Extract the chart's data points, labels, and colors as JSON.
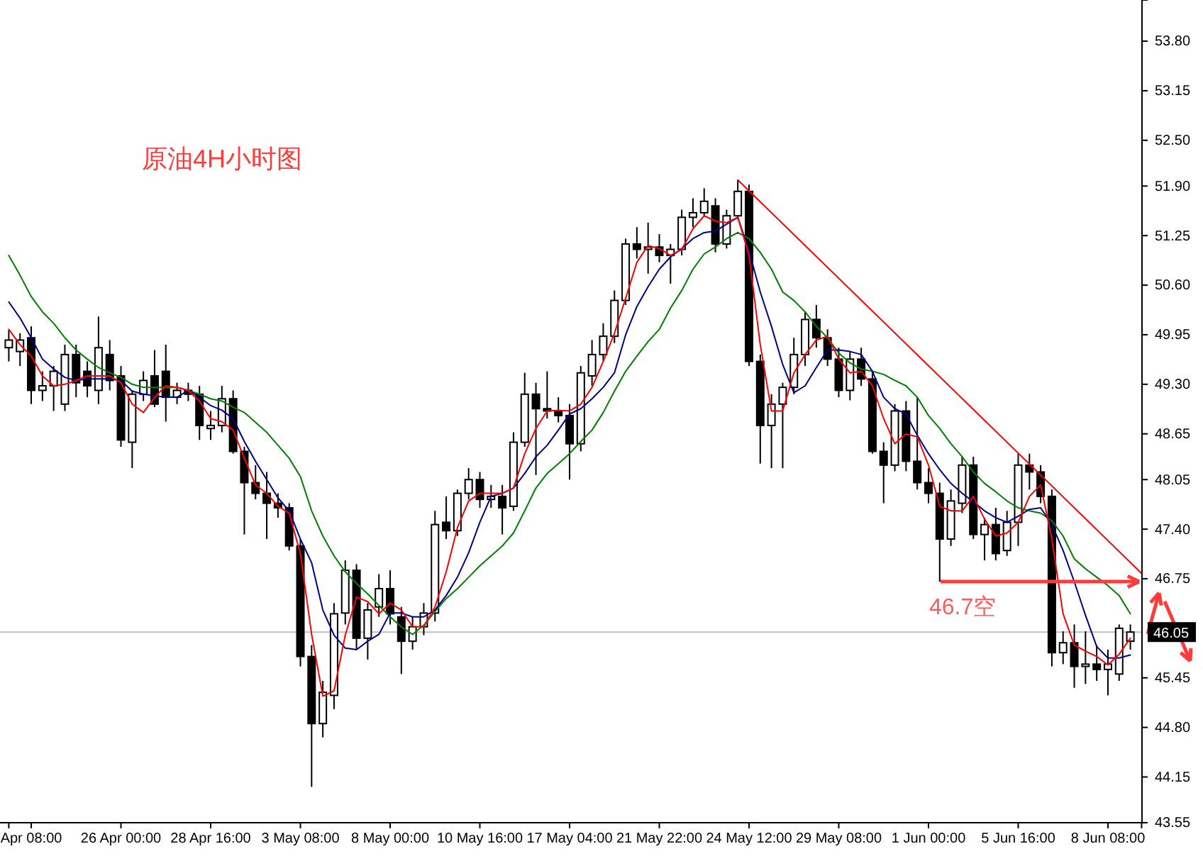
{
  "chart_data": {
    "type": "candlestick",
    "title": "原油4H小时图",
    "categories": [
      null,
      null,
      "Apr 08:00",
      null,
      null,
      null,
      null,
      null,
      null,
      null,
      "26 Apr 00:00",
      null,
      null,
      null,
      null,
      null,
      null,
      null,
      "28 Apr 16:00",
      null,
      null,
      null,
      null,
      null,
      null,
      null,
      "3 May 08:00",
      null,
      null,
      null,
      null,
      null,
      null,
      null,
      "8 May 00:00",
      null,
      null,
      null,
      null,
      null,
      null,
      null,
      "10 May 16:00",
      null,
      null,
      null,
      null,
      null,
      null,
      null,
      "17 May 04:00",
      null,
      null,
      null,
      null,
      null,
      null,
      null,
      "21 May 22:00",
      null,
      null,
      null,
      null,
      null,
      null,
      null,
      "24 May 12:00",
      null,
      null,
      null,
      null,
      null,
      null,
      null,
      "29 May 08:00",
      null,
      null,
      null,
      null,
      null,
      null,
      null,
      "1 Jun 00:00",
      null,
      null,
      null,
      null,
      null,
      null,
      null,
      "5 Jun 16:00",
      null,
      null,
      null,
      null,
      null,
      null,
      null,
      "8 Jun 08:00",
      null,
      null,
      null
    ],
    "ohlc": [
      [
        49.78,
        50.01,
        49.6,
        49.88
      ],
      [
        49.73,
        49.97,
        49.54,
        49.88
      ],
      [
        49.91,
        50.06,
        49.04,
        49.22
      ],
      [
        49.22,
        49.47,
        49.08,
        49.28
      ],
      [
        49.28,
        49.54,
        48.95,
        49.47
      ],
      [
        49.04,
        49.82,
        48.95,
        49.69
      ],
      [
        49.69,
        49.82,
        49.13,
        49.32
      ],
      [
        49.47,
        49.6,
        49.13,
        49.28
      ],
      [
        49.22,
        50.19,
        49.04,
        49.78
      ],
      [
        49.69,
        49.88,
        49.22,
        49.35
      ],
      [
        49.41,
        49.54,
        48.48,
        48.57
      ],
      [
        48.54,
        49.22,
        48.2,
        49.17
      ],
      [
        49.17,
        49.47,
        49.08,
        49.35
      ],
      [
        49.41,
        49.75,
        49.0,
        49.04
      ],
      [
        49.47,
        49.82,
        48.81,
        49.13
      ],
      [
        49.13,
        49.32,
        49.04,
        49.22
      ],
      [
        49.22,
        49.32,
        49.08,
        49.17
      ],
      [
        49.17,
        49.28,
        48.57,
        48.76
      ],
      [
        48.72,
        48.95,
        48.57,
        48.76
      ],
      [
        48.76,
        49.28,
        48.67,
        49.11
      ],
      [
        49.11,
        49.22,
        48.39,
        48.42
      ],
      [
        48.42,
        48.48,
        47.33,
        48.01
      ],
      [
        48.01,
        48.24,
        47.79,
        47.87
      ],
      [
        47.87,
        48.15,
        47.27,
        47.74
      ],
      [
        47.74,
        47.87,
        47.55,
        47.68
      ],
      [
        47.68,
        47.74,
        47.12,
        47.18
      ],
      [
        47.18,
        47.27,
        45.6,
        45.73
      ],
      [
        45.73,
        45.88,
        44.02,
        44.85
      ],
      [
        44.85,
        45.41,
        44.67,
        45.26
      ],
      [
        45.22,
        46.43,
        45.04,
        46.29
      ],
      [
        46.3,
        46.99,
        46.15,
        46.86
      ],
      [
        46.86,
        46.94,
        45.82,
        45.97
      ],
      [
        45.97,
        46.43,
        45.69,
        46.34
      ],
      [
        46.38,
        46.81,
        46.25,
        46.62
      ],
      [
        46.62,
        46.86,
        46.15,
        46.29
      ],
      [
        46.25,
        46.38,
        45.5,
        45.93
      ],
      [
        45.93,
        46.25,
        45.82,
        46.12
      ],
      [
        46.12,
        46.43,
        46.01,
        46.3
      ],
      [
        46.3,
        47.64,
        46.19,
        47.46
      ],
      [
        47.49,
        47.83,
        47.27,
        47.38
      ],
      [
        47.38,
        47.92,
        47.31,
        47.87
      ],
      [
        47.87,
        48.2,
        47.79,
        48.05
      ],
      [
        48.05,
        48.15,
        47.68,
        47.79
      ],
      [
        47.79,
        47.98,
        47.68,
        47.83
      ],
      [
        47.83,
        47.98,
        47.33,
        47.68
      ],
      [
        47.7,
        48.67,
        47.64,
        48.54
      ],
      [
        48.54,
        49.45,
        48.48,
        49.17
      ],
      [
        49.17,
        49.32,
        48.11,
        48.98
      ],
      [
        48.98,
        49.47,
        48.85,
        48.95
      ],
      [
        48.95,
        49.13,
        48.8,
        48.89
      ],
      [
        48.89,
        49.04,
        48.05,
        48.52
      ],
      [
        48.52,
        49.54,
        48.42,
        49.45
      ],
      [
        49.41,
        49.88,
        49.28,
        49.69
      ],
      [
        49.69,
        50.1,
        49.6,
        49.93
      ],
      [
        49.93,
        50.53,
        49.84,
        50.4
      ],
      [
        50.4,
        51.21,
        50.34,
        51.14
      ],
      [
        51.14,
        51.36,
        50.95,
        51.07
      ],
      [
        51.07,
        51.42,
        50.75,
        51.1
      ],
      [
        51.1,
        51.27,
        50.9,
        50.99
      ],
      [
        50.99,
        51.14,
        50.62,
        51.07
      ],
      [
        51.07,
        51.59,
        50.99,
        51.49
      ],
      [
        51.49,
        51.74,
        51.36,
        51.55
      ],
      [
        51.55,
        51.87,
        51.51,
        51.7
      ],
      [
        51.64,
        51.74,
        51.03,
        51.14
      ],
      [
        51.14,
        51.59,
        51.08,
        51.51
      ],
      [
        51.51,
        51.98,
        51.46,
        51.83
      ],
      [
        51.83,
        51.92,
        49.54,
        49.6
      ],
      [
        49.6,
        49.69,
        48.26,
        48.76
      ],
      [
        48.76,
        49.17,
        48.2,
        49.04
      ],
      [
        49.04,
        49.32,
        48.2,
        49.26
      ],
      [
        49.26,
        49.91,
        49.17,
        49.69
      ],
      [
        49.69,
        50.25,
        49.54,
        50.15
      ],
      [
        50.15,
        50.34,
        49.78,
        49.91
      ],
      [
        49.91,
        50.02,
        49.54,
        49.63
      ],
      [
        49.63,
        49.78,
        49.13,
        49.22
      ],
      [
        49.22,
        49.73,
        49.09,
        49.63
      ],
      [
        49.63,
        49.78,
        49.28,
        49.37
      ],
      [
        49.37,
        49.47,
        48.39,
        48.42
      ],
      [
        48.42,
        48.54,
        47.74,
        48.24
      ],
      [
        48.24,
        49.04,
        48.16,
        48.95
      ],
      [
        48.95,
        49.08,
        48.16,
        48.29
      ],
      [
        48.29,
        49.13,
        47.92,
        48.01
      ],
      [
        48.01,
        48.2,
        47.74,
        47.87
      ],
      [
        47.87,
        48.01,
        46.71,
        47.27
      ],
      [
        47.27,
        47.92,
        47.18,
        47.77
      ],
      [
        47.74,
        48.35,
        47.61,
        48.24
      ],
      [
        48.24,
        48.35,
        47.27,
        47.33
      ],
      [
        47.33,
        47.55,
        46.99,
        47.46
      ],
      [
        47.46,
        47.68,
        46.99,
        47.08
      ],
      [
        47.12,
        47.64,
        47.05,
        47.49
      ],
      [
        47.49,
        48.39,
        47.18,
        48.24
      ],
      [
        48.24,
        48.39,
        47.92,
        48.15
      ],
      [
        48.15,
        48.24,
        47.74,
        47.83
      ],
      [
        47.83,
        47.92,
        45.6,
        45.78
      ],
      [
        45.78,
        46.06,
        45.63,
        45.91
      ],
      [
        45.91,
        46.15,
        45.32,
        45.6
      ],
      [
        45.6,
        46.06,
        45.37,
        45.63
      ],
      [
        45.63,
        45.88,
        45.41,
        45.56
      ],
      [
        45.56,
        45.82,
        45.22,
        45.63
      ],
      [
        45.5,
        46.15,
        45.41,
        46.1
      ],
      [
        45.93,
        46.15,
        45.82,
        46.05
      ],
      null
    ],
    "series": [
      {
        "type": "line",
        "color": "#008000",
        "values": [
          50.99,
          50.73,
          50.45,
          50.25,
          50.1,
          49.91,
          49.75,
          49.63,
          49.52,
          49.45,
          49.39,
          49.3,
          49.26,
          49.26,
          49.26,
          49.26,
          49.22,
          49.17,
          49.11,
          49.08,
          49.0,
          48.93,
          48.8,
          48.67,
          48.5,
          48.33,
          48.09,
          47.64,
          47.31,
          47.05,
          46.84,
          46.69,
          46.55,
          46.4,
          46.25,
          46.12,
          46.02,
          46.14,
          46.32,
          46.49,
          46.62,
          46.77,
          46.92,
          47.05,
          47.18,
          47.35,
          47.64,
          47.94,
          48.13,
          48.26,
          48.39,
          48.55,
          48.7,
          48.93,
          49.21,
          49.47,
          49.67,
          49.86,
          50.02,
          50.3,
          50.53,
          50.81,
          51.01,
          51.1,
          51.21,
          51.29,
          51.21,
          51.03,
          50.81,
          50.51,
          50.4,
          50.25,
          50.06,
          49.91,
          49.71,
          49.58,
          49.5,
          49.47,
          49.43,
          49.35,
          49.28,
          49.13,
          48.89,
          48.72,
          48.52,
          48.35,
          48.15,
          48.0,
          47.89,
          47.77,
          47.68,
          47.64,
          47.61,
          47.51,
          47.31,
          47.01,
          46.88,
          46.77,
          46.66,
          46.53,
          46.29,
          null
        ]
      },
      {
        "type": "line",
        "color": "#00008b",
        "values": [
          50.38,
          50.17,
          49.91,
          49.63,
          49.5,
          49.39,
          49.35,
          49.37,
          49.37,
          49.37,
          49.35,
          49.21,
          49.17,
          49.15,
          49.13,
          49.13,
          49.22,
          49.13,
          49.02,
          48.96,
          48.85,
          48.55,
          48.29,
          48.05,
          47.81,
          47.64,
          47.27,
          46.96,
          46.34,
          46.01,
          45.84,
          45.82,
          45.93,
          46.02,
          46.3,
          46.3,
          46.25,
          46.25,
          46.34,
          46.53,
          46.77,
          47.09,
          47.49,
          47.83,
          47.87,
          47.94,
          48.13,
          48.35,
          48.5,
          48.7,
          48.91,
          48.98,
          49.11,
          49.26,
          49.45,
          49.95,
          50.32,
          50.58,
          50.81,
          50.97,
          51.08,
          51.21,
          51.29,
          51.31,
          51.4,
          51.49,
          51.05,
          50.51,
          50.06,
          49.56,
          49.19,
          49.28,
          49.52,
          49.75,
          49.75,
          49.73,
          49.69,
          49.47,
          49.13,
          48.98,
          48.91,
          48.63,
          48.39,
          48.18,
          48.0,
          47.87,
          47.76,
          47.64,
          47.55,
          47.49,
          47.57,
          47.66,
          47.68,
          47.46,
          47.12,
          46.71,
          46.27,
          45.86,
          45.71,
          45.71,
          45.75,
          null
        ]
      },
      {
        "type": "line",
        "color": "#ff0000",
        "values": [
          50.02,
          49.82,
          49.67,
          49.41,
          49.28,
          49.3,
          49.35,
          49.41,
          49.41,
          49.41,
          49.32,
          49.04,
          48.93,
          49.13,
          49.28,
          49.26,
          49.22,
          49.08,
          48.85,
          48.81,
          48.7,
          48.33,
          47.98,
          47.87,
          47.7,
          47.61,
          47.08,
          46.02,
          45.21,
          45.28,
          46.01,
          46.51,
          46.45,
          46.29,
          46.43,
          46.34,
          46.12,
          46.12,
          46.38,
          46.84,
          47.42,
          47.77,
          47.87,
          47.87,
          47.87,
          47.94,
          48.39,
          48.72,
          48.95,
          48.96,
          48.95,
          49.04,
          49.26,
          49.6,
          49.97,
          50.43,
          50.9,
          51.12,
          51.08,
          50.99,
          51.07,
          51.34,
          51.51,
          51.44,
          51.42,
          51.49,
          50.99,
          49.82,
          48.95,
          48.95,
          49.45,
          49.69,
          49.88,
          49.93,
          49.63,
          49.45,
          49.47,
          49.28,
          48.85,
          48.52,
          48.65,
          48.61,
          48.24,
          47.7,
          47.64,
          47.64,
          47.83,
          47.53,
          47.31,
          47.35,
          47.49,
          47.83,
          47.98,
          47.27,
          46.29,
          45.88,
          45.8,
          45.73,
          45.62,
          45.76,
          45.97,
          null
        ]
      },
      {
        "type": "line",
        "color": "#ff0000",
        "values": [
          null,
          null,
          null,
          null,
          null,
          null,
          null,
          null,
          null,
          null,
          null,
          null,
          null,
          null,
          null,
          null,
          null,
          null,
          null,
          null,
          null,
          null,
          null,
          null,
          null,
          null,
          null,
          null,
          null,
          null,
          null,
          null,
          null,
          null,
          null,
          null,
          null,
          null,
          null,
          null,
          null,
          null,
          null,
          null,
          null,
          null,
          null,
          null,
          null,
          null,
          null,
          null,
          null,
          null,
          null,
          null,
          null,
          null,
          null,
          null,
          null,
          null,
          null,
          null,
          null,
          51.98,
          null,
          null,
          null,
          null,
          null,
          null,
          null,
          null,
          null,
          null,
          null,
          null,
          null,
          null,
          null,
          null,
          null,
          null,
          null,
          null,
          null,
          null,
          null,
          null,
          null,
          null,
          null,
          null,
          null,
          null,
          null,
          null,
          null,
          null,
          null,
          46.82
        ]
      }
    ],
    "ylim": [
      43.55,
      54.34
    ],
    "yticks": [
      {
        "value": 53.8,
        "label": "53.80"
      },
      {
        "value": 53.15,
        "label": "53.15"
      },
      {
        "value": 52.5,
        "label": "52.50"
      },
      {
        "value": 51.9,
        "label": "51.90"
      },
      {
        "value": 51.25,
        "label": "51.25"
      },
      {
        "value": 50.6,
        "label": "50.60"
      },
      {
        "value": 49.95,
        "label": "49.95"
      },
      {
        "value": 49.3,
        "label": "49.30"
      },
      {
        "value": 48.65,
        "label": "48.65"
      },
      {
        "value": 48.05,
        "label": "48.05"
      },
      {
        "value": 47.4,
        "label": "47.40"
      },
      {
        "value": 46.75,
        "label": "46.75"
      },
      {
        "value": 45.45,
        "label": "45.45"
      },
      {
        "value": 44.8,
        "label": "44.80"
      },
      {
        "value": 44.15,
        "label": "44.15"
      },
      {
        "value": 43.55,
        "label": "43.55"
      }
    ],
    "ref_lines": [
      {
        "axis": "y",
        "value": 46.05,
        "label": "46.05",
        "color": "#c0c0c0"
      }
    ],
    "annotations": [
      "46.7空"
    ]
  }
}
